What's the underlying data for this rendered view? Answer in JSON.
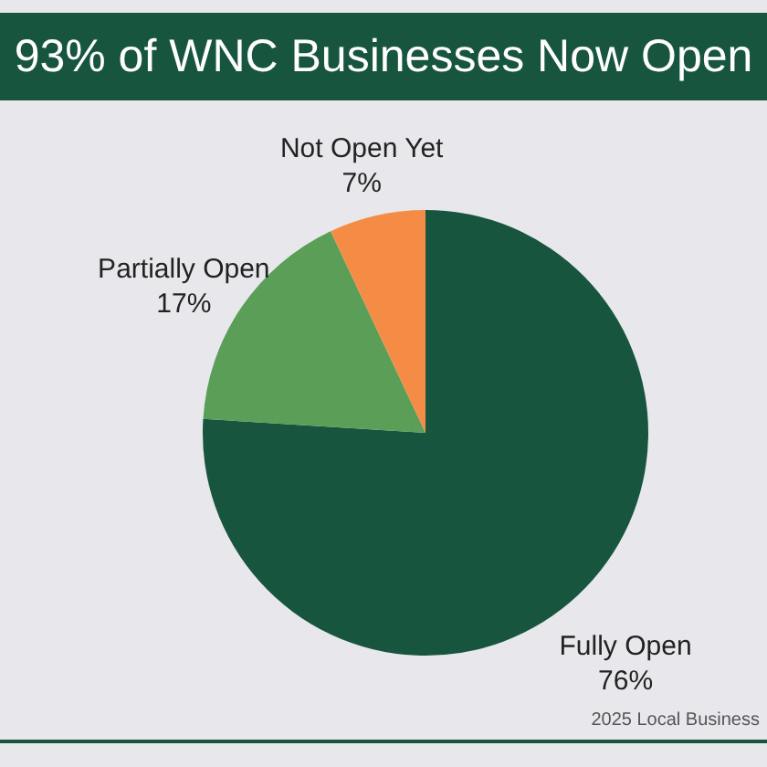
{
  "chart_data": {
    "type": "pie",
    "title": "93% of WNC Businesses Now Open",
    "categories": [
      "Fully Open",
      "Partially Open",
      "Not Open Yet"
    ],
    "values": [
      76,
      17,
      7
    ],
    "value_labels": [
      "76%",
      "17%",
      "7%"
    ],
    "colors": [
      "#17553f",
      "#5a9e57",
      "#f58c45"
    ],
    "annotations": [
      "2025 Local Business"
    ]
  }
}
